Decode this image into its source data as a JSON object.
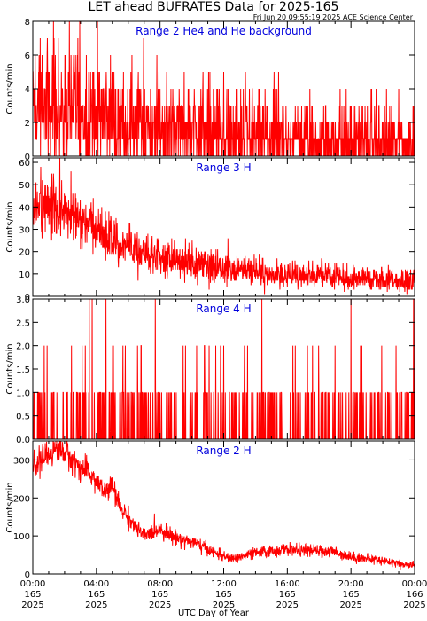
{
  "title": "LET ahead BUFRATES Data for 2025-165",
  "timestamp": "Fri Jun 20 09:55:19 2025 ACE Science Center",
  "colors": {
    "series": "#ff0000",
    "panel_title": "#0000dd",
    "axis": "#000000"
  },
  "chart_data": [
    {
      "type": "line",
      "title": "Range 2 He4 and He background",
      "ylabel": "Counts/min",
      "ylim": [
        0,
        8
      ],
      "yticks": [
        0,
        2,
        4,
        6,
        8
      ],
      "xlim": [
        0,
        24
      ],
      "x_unit": "hours UTC on day 165",
      "sample_interval_min": 1,
      "profile": [
        [
          0,
          2.8
        ],
        [
          3,
          2.6
        ],
        [
          6,
          2.1
        ],
        [
          10,
          1.6
        ],
        [
          14,
          1.2
        ],
        [
          18,
          1.0
        ],
        [
          24,
          0.9
        ]
      ],
      "noise": "poisson",
      "spikes": [
        [
          1.3,
          8
        ],
        [
          2.3,
          8
        ],
        [
          1.6,
          7
        ],
        [
          0.4,
          6
        ],
        [
          2.8,
          6
        ],
        [
          0.9,
          6
        ],
        [
          5.1,
          5
        ],
        [
          7.4,
          4
        ],
        [
          4.6,
          4
        ],
        [
          8.8,
          4
        ],
        [
          10.2,
          3
        ],
        [
          12.6,
          3
        ],
        [
          15.5,
          2
        ],
        [
          18.2,
          2
        ],
        [
          23.9,
          3
        ]
      ]
    },
    {
      "type": "line",
      "title": "Range 3 H",
      "ylabel": "Counts/min",
      "ylim": [
        0,
        62
      ],
      "yticks": [
        0,
        10,
        20,
        30,
        40,
        50,
        60
      ],
      "xlim": [
        0,
        24
      ],
      "x_unit": "hours UTC on day 165",
      "sample_interval_min": 1,
      "profile": [
        [
          0,
          38
        ],
        [
          1,
          40
        ],
        [
          2,
          37
        ],
        [
          3,
          33
        ],
        [
          4,
          30
        ],
        [
          5,
          26
        ],
        [
          6,
          22
        ],
        [
          7,
          20
        ],
        [
          8,
          18
        ],
        [
          9,
          17
        ],
        [
          10,
          15
        ],
        [
          11,
          14
        ],
        [
          12,
          13
        ],
        [
          13,
          12
        ],
        [
          14,
          11
        ],
        [
          15,
          10
        ],
        [
          16,
          10
        ],
        [
          17,
          9.5
        ],
        [
          18,
          9
        ],
        [
          19,
          8.5
        ],
        [
          20,
          8
        ],
        [
          21,
          8
        ],
        [
          22,
          7.5
        ],
        [
          23,
          7
        ],
        [
          24,
          7
        ]
      ],
      "noise": "poisson",
      "spikes": [
        [
          0.5,
          58
        ],
        [
          1.2,
          55
        ],
        [
          1.7,
          62
        ],
        [
          2.4,
          56
        ],
        [
          0.2,
          51
        ]
      ]
    },
    {
      "type": "line",
      "title": "Range 4 H",
      "ylabel": "Counts/min",
      "ylim": [
        0,
        3
      ],
      "yticks": [
        0.0,
        0.5,
        1.0,
        1.5,
        2.0,
        2.5,
        3.0
      ],
      "xlim": [
        0,
        24
      ],
      "x_unit": "hours UTC on day 165",
      "sample_interval_min": 1,
      "profile": [
        [
          0,
          0.25
        ],
        [
          12,
          0.2
        ],
        [
          24,
          0.2
        ]
      ],
      "noise": "poisson",
      "spikes": [
        [
          0.9,
          2
        ],
        [
          3.1,
          2
        ],
        [
          3.3,
          2
        ],
        [
          6.8,
          2
        ],
        [
          7.7,
          3
        ],
        [
          10.3,
          2
        ],
        [
          10.8,
          2
        ],
        [
          11.5,
          2
        ],
        [
          12.0,
          2
        ],
        [
          13.5,
          2
        ],
        [
          14.4,
          3
        ],
        [
          16.5,
          2
        ],
        [
          19.0,
          2
        ],
        [
          20.0,
          3
        ],
        [
          20.6,
          2
        ]
      ]
    },
    {
      "type": "line",
      "title": "Range 2 H",
      "ylabel": "Counts/min",
      "ylim": [
        0,
        350
      ],
      "yticks": [
        0,
        100,
        200,
        300
      ],
      "xlim": [
        0,
        24
      ],
      "x_unit": "hours UTC on day 165",
      "sample_interval_min": 1,
      "profile": [
        [
          0,
          285
        ],
        [
          0.5,
          300
        ],
        [
          1.0,
          315
        ],
        [
          1.5,
          330
        ],
        [
          2.0,
          320
        ],
        [
          2.5,
          300
        ],
        [
          3.0,
          280
        ],
        [
          3.5,
          265
        ],
        [
          4.0,
          245
        ],
        [
          4.5,
          215
        ],
        [
          5.0,
          230
        ],
        [
          5.5,
          175
        ],
        [
          6.0,
          150
        ],
        [
          6.5,
          120
        ],
        [
          7.0,
          100
        ],
        [
          7.5,
          110
        ],
        [
          8.0,
          120
        ],
        [
          8.5,
          105
        ],
        [
          9.0,
          95
        ],
        [
          9.5,
          90
        ],
        [
          10.0,
          85
        ],
        [
          10.5,
          75
        ],
        [
          11.0,
          65
        ],
        [
          11.5,
          55
        ],
        [
          12.0,
          45
        ],
        [
          12.5,
          40
        ],
        [
          13.0,
          45
        ],
        [
          14.0,
          55
        ],
        [
          15.0,
          60
        ],
        [
          16.0,
          65
        ],
        [
          17.0,
          62
        ],
        [
          18.0,
          60
        ],
        [
          19.0,
          58
        ],
        [
          20.0,
          45
        ],
        [
          21.0,
          40
        ],
        [
          22.0,
          35
        ],
        [
          23.0,
          28
        ],
        [
          24.0,
          22
        ]
      ],
      "noise": "poisson"
    }
  ],
  "xaxis": {
    "label": "UTC Day of Year",
    "ticks": [
      {
        "time": "00:00",
        "day": "165",
        "year": "2025",
        "hour": 0
      },
      {
        "time": "04:00",
        "day": "165",
        "year": "2025",
        "hour": 4
      },
      {
        "time": "08:00",
        "day": "165",
        "year": "2025",
        "hour": 8
      },
      {
        "time": "12:00",
        "day": "165",
        "year": "2025",
        "hour": 12
      },
      {
        "time": "16:00",
        "day": "165",
        "year": "2025",
        "hour": 16
      },
      {
        "time": "20:00",
        "day": "165",
        "year": "2025",
        "hour": 20
      },
      {
        "time": "00:00",
        "day": "166",
        "year": "2025",
        "hour": 24
      }
    ]
  }
}
